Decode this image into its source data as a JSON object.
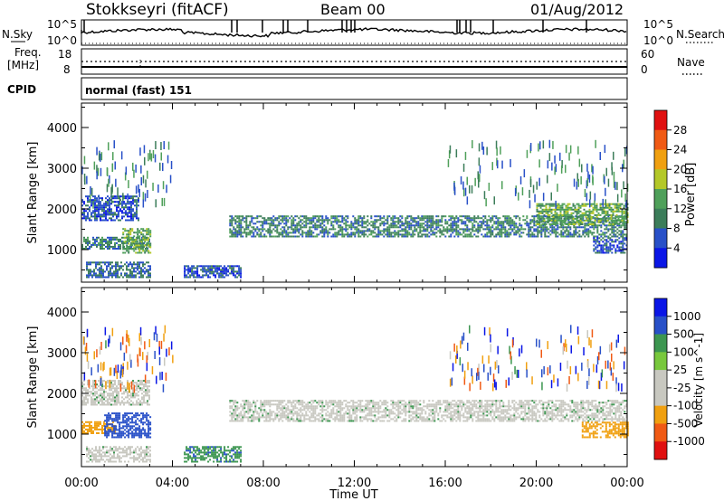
{
  "header": {
    "station": "Stokkseyri (fitACF)",
    "beam": "Beam 00",
    "date": "01/Aug/2012"
  },
  "control_panels": {
    "nsky": {
      "label": "N.Sky",
      "left_ticks": [
        "10^5",
        "10^0"
      ],
      "right_ticks": [
        "10^5",
        "10^0"
      ],
      "right_label": "N.Search"
    },
    "freq": {
      "label_line1": "Freq.",
      "label_line2": "[MHz]",
      "left_ticks": [
        "18",
        "8"
      ],
      "right_ticks": [
        "60",
        "0"
      ],
      "right_label": "Nave"
    },
    "cpid": {
      "label": "CPID",
      "value": "normal (fast) 151"
    }
  },
  "colors": {
    "power": [
      "#0a16e6",
      "#2850c8",
      "#3c7d5a",
      "#4fa05a",
      "#b4c828",
      "#f0a010",
      "#f05a14",
      "#e01010"
    ],
    "velocity": [
      "#e01010",
      "#f05a14",
      "#f0a010",
      "#c8c8c0",
      "#c8c8c0",
      "#78c83c",
      "#3c9650",
      "#2850c8",
      "#0a16e6"
    ]
  },
  "chart_data": [
    {
      "type": "heatmap",
      "name": "power",
      "ylabel": "Slant Range [km]",
      "xlabel": "",
      "x_ticks": [
        "00:00",
        "04:00",
        "08:00",
        "12:00",
        "16:00",
        "20:00",
        "00:00"
      ],
      "y_ticks": [
        "1000",
        "2000",
        "3000",
        "4000"
      ],
      "ylim": [
        200,
        4600
      ],
      "colorbar": {
        "label": "Power [dB]",
        "ticks": [
          "4",
          "8",
          "12",
          "16",
          "20",
          "24",
          "28"
        ]
      },
      "regions": [
        {
          "x_hr": [
            0.0,
            3.0
          ],
          "range_km": [
            1000,
            1300
          ],
          "value_db": 10
        },
        {
          "x_hr": [
            0.0,
            2.5
          ],
          "range_km": [
            1700,
            2300
          ],
          "value_db": 6
        },
        {
          "x_hr": [
            1.8,
            3.0
          ],
          "range_km": [
            900,
            1500
          ],
          "value_db": 14
        },
        {
          "x_hr": [
            0.2,
            3.0
          ],
          "range_km": [
            300,
            700
          ],
          "value_db": 8
        },
        {
          "x_hr": [
            4.5,
            7.0
          ],
          "range_km": [
            300,
            600
          ],
          "value_db": 6
        },
        {
          "x_hr": [
            6.5,
            24.0
          ],
          "range_km": [
            1300,
            1800
          ],
          "value_db": 10
        },
        {
          "x_hr": [
            20.0,
            24.0
          ],
          "range_km": [
            1600,
            2100
          ],
          "value_db": 14
        },
        {
          "x_hr": [
            22.5,
            24.0
          ],
          "range_km": [
            900,
            1300
          ],
          "value_db": 6
        }
      ]
    },
    {
      "type": "heatmap",
      "name": "velocity",
      "ylabel": "Slant Range [km]",
      "xlabel": "Time UT",
      "x_ticks": [
        "00:00",
        "04:00",
        "08:00",
        "12:00",
        "16:00",
        "20:00",
        "00:00"
      ],
      "y_ticks": [
        "1000",
        "2000",
        "3000",
        "4000"
      ],
      "ylim": [
        200,
        4600
      ],
      "colorbar": {
        "label": "Velocity [m s^-1]",
        "ticks": [
          "1000",
          "500",
          "100",
          "25",
          "-25",
          "-100",
          "-500",
          "-1000"
        ]
      },
      "regions": [
        {
          "x_hr": [
            0.0,
            1.5
          ],
          "range_km": [
            1000,
            1300
          ],
          "value_ms": -400
        },
        {
          "x_hr": [
            1.0,
            3.0
          ],
          "range_km": [
            900,
            1500
          ],
          "value_ms": 150
        },
        {
          "x_hr": [
            0.0,
            3.0
          ],
          "range_km": [
            1700,
            2300
          ],
          "value_ms": 0
        },
        {
          "x_hr": [
            0.2,
            3.0
          ],
          "range_km": [
            300,
            700
          ],
          "value_ms": 0
        },
        {
          "x_hr": [
            4.5,
            7.0
          ],
          "range_km": [
            300,
            700
          ],
          "value_ms": 80
        },
        {
          "x_hr": [
            6.5,
            24.0
          ],
          "range_km": [
            1300,
            1800
          ],
          "value_ms": 0
        },
        {
          "x_hr": [
            22.0,
            24.0
          ],
          "range_km": [
            900,
            1300
          ],
          "value_ms": -400
        }
      ]
    }
  ]
}
